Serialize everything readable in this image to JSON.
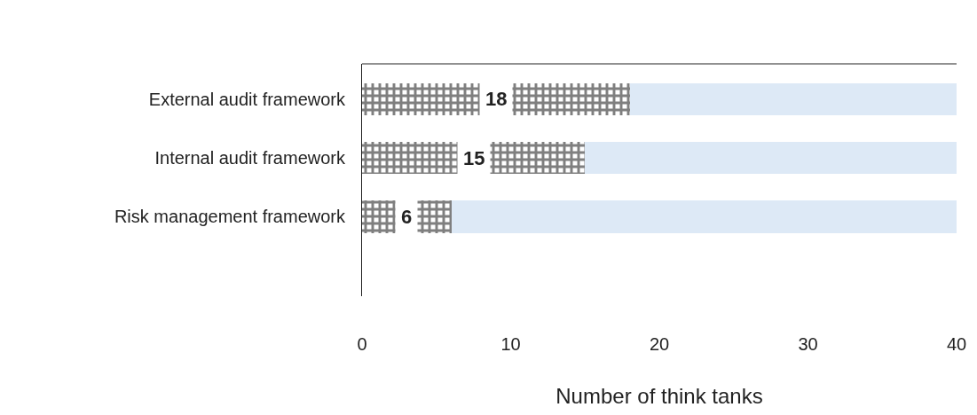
{
  "chart_data": {
    "type": "bar",
    "orientation": "horizontal",
    "stacked": true,
    "categories": [
      "External audit framework",
      "Internal audit framework",
      "Risk management framework"
    ],
    "series": [
      {
        "color": "#000000",
        "values": [
          18,
          15,
          6
        ],
        "data_labels": true
      },
      {
        "color": "#dde9f6",
        "values": [
          22,
          25,
          34
        ]
      }
    ],
    "xlabel": "Number of think tanks",
    "xlim": [
      0,
      40
    ],
    "xticks": [
      0,
      10,
      20,
      30,
      40
    ]
  }
}
